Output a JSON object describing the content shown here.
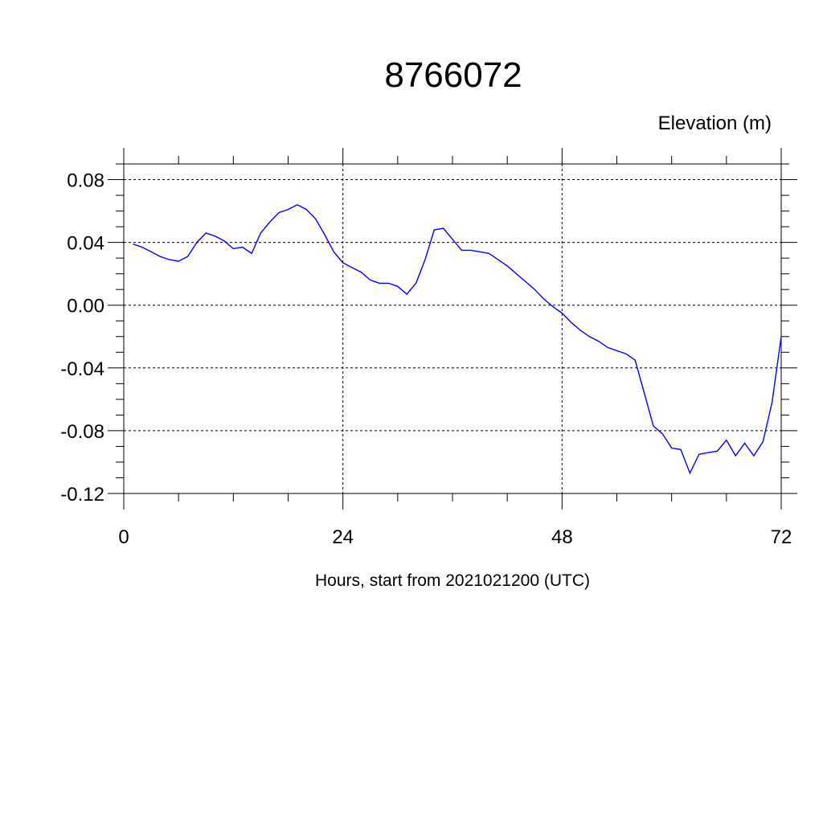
{
  "chart_data": {
    "type": "line",
    "title": "8766072",
    "ylabel": "Elevation (m)",
    "xlabel": "Hours, start from 2021021200 (UTC)",
    "xlim": [
      0,
      72
    ],
    "ylim": [
      -0.12,
      0.09
    ],
    "x_ticks": [
      0,
      24,
      48,
      72
    ],
    "x_tick_labels": [
      "0",
      "24",
      "48",
      "72"
    ],
    "y_ticks": [
      0.08,
      0.04,
      0.0,
      -0.04,
      -0.08,
      -0.12
    ],
    "y_tick_labels": [
      "0.08",
      "0.04",
      "0.00",
      "-0.04",
      "-0.08",
      "-0.12"
    ],
    "grid": true,
    "line_color": "#0000ff",
    "series": [
      {
        "x": [
          1,
          2,
          3,
          4,
          5,
          6,
          7,
          8,
          9,
          10,
          11,
          12,
          13,
          14,
          15,
          16,
          17,
          18,
          19,
          20,
          21,
          22,
          23,
          24,
          25,
          26,
          27,
          28,
          29,
          30,
          31,
          32,
          33,
          34,
          35,
          36,
          37,
          38,
          39,
          40,
          41,
          42,
          43,
          44,
          45,
          46,
          47,
          48,
          49,
          50,
          51,
          52,
          53,
          54,
          55,
          56,
          57,
          58,
          59,
          60,
          61,
          62,
          63,
          64,
          65,
          66,
          67,
          68,
          69,
          70,
          71,
          72
        ],
        "values": [
          0.039,
          0.037,
          0.034,
          0.031,
          0.029,
          0.028,
          0.031,
          0.04,
          0.046,
          0.044,
          0.041,
          0.036,
          0.037,
          0.033,
          0.046,
          0.053,
          0.059,
          0.061,
          0.064,
          0.061,
          0.055,
          0.045,
          0.034,
          0.027,
          0.024,
          0.021,
          0.016,
          0.014,
          0.014,
          0.012,
          0.007,
          0.014,
          0.029,
          0.048,
          0.049,
          0.042,
          0.035,
          0.035,
          0.034,
          0.033,
          0.029,
          0.025,
          0.02,
          0.015,
          0.01,
          0.004,
          -0.001,
          -0.005,
          -0.011,
          -0.016,
          -0.02,
          -0.023,
          -0.027,
          -0.029,
          -0.031,
          -0.035,
          -0.056,
          -0.077,
          -0.082,
          -0.091,
          -0.092,
          -0.107,
          -0.095,
          -0.094,
          -0.093,
          -0.086,
          -0.096,
          -0.088,
          -0.096,
          -0.087,
          -0.062,
          -0.02
        ]
      }
    ]
  }
}
